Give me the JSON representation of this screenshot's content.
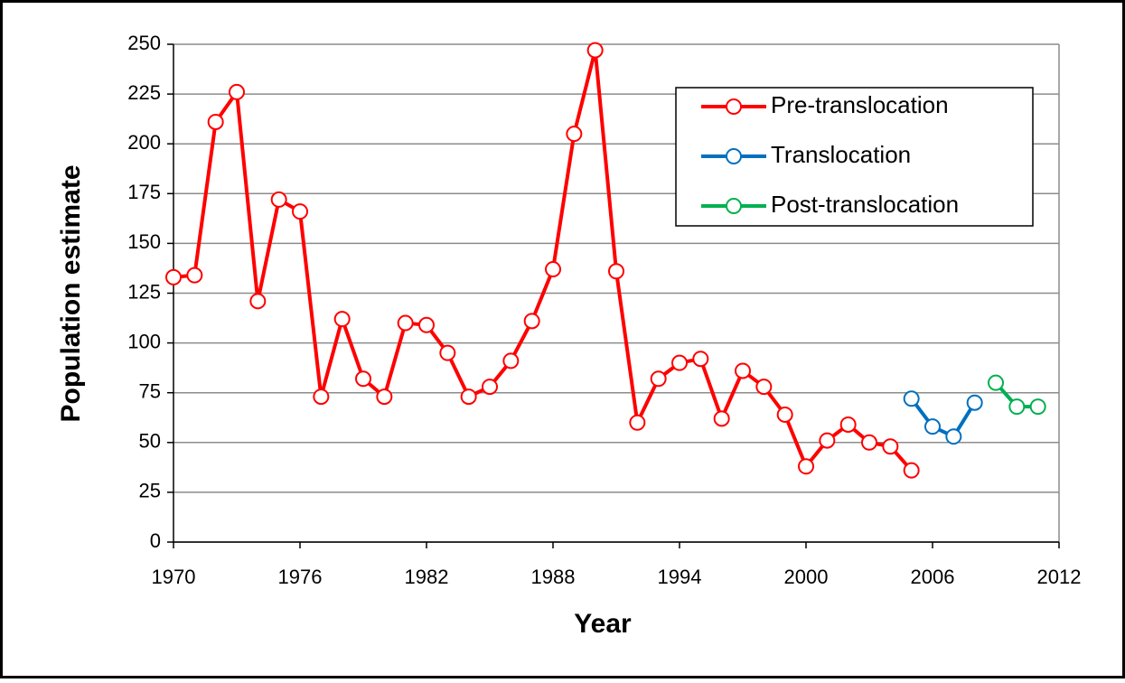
{
  "chart_data": {
    "type": "line",
    "xlabel": "Year",
    "ylabel": "Population estimate",
    "xlim": [
      1970,
      2012
    ],
    "xticks": [
      1970,
      1976,
      1982,
      1988,
      1994,
      2000,
      2006,
      2012
    ],
    "ylim": [
      0,
      250
    ],
    "yticks": [
      0,
      25,
      50,
      75,
      100,
      125,
      150,
      175,
      200,
      225,
      250
    ],
    "grid": true,
    "legend": "upper right",
    "series": [
      {
        "name": "Pre-translocation",
        "color": "#ff0000",
        "x": [
          1970,
          1971,
          1972,
          1973,
          1974,
          1975,
          1976,
          1977,
          1978,
          1979,
          1980,
          1981,
          1982,
          1983,
          1984,
          1985,
          1986,
          1987,
          1988,
          1989,
          1990,
          1991,
          1992,
          1993,
          1994,
          1995,
          1996,
          1997,
          1998,
          1999,
          2000,
          2001,
          2002,
          2003,
          2004,
          2005
        ],
        "values": [
          133,
          134,
          211,
          226,
          121,
          172,
          166,
          73,
          112,
          82,
          73,
          110,
          109,
          95,
          73,
          78,
          91,
          111,
          137,
          205,
          247,
          136,
          60,
          82,
          90,
          92,
          62,
          86,
          78,
          64,
          38,
          51,
          59,
          50,
          48,
          36
        ]
      },
      {
        "name": "Translocation",
        "color": "#0070c0",
        "x": [
          2005,
          2006,
          2007,
          2008
        ],
        "values": [
          72,
          58,
          53,
          70
        ]
      },
      {
        "name": "Post-translocation",
        "color": "#00b050",
        "x": [
          2009,
          2010,
          2011
        ],
        "values": [
          80,
          68,
          68
        ]
      }
    ]
  }
}
